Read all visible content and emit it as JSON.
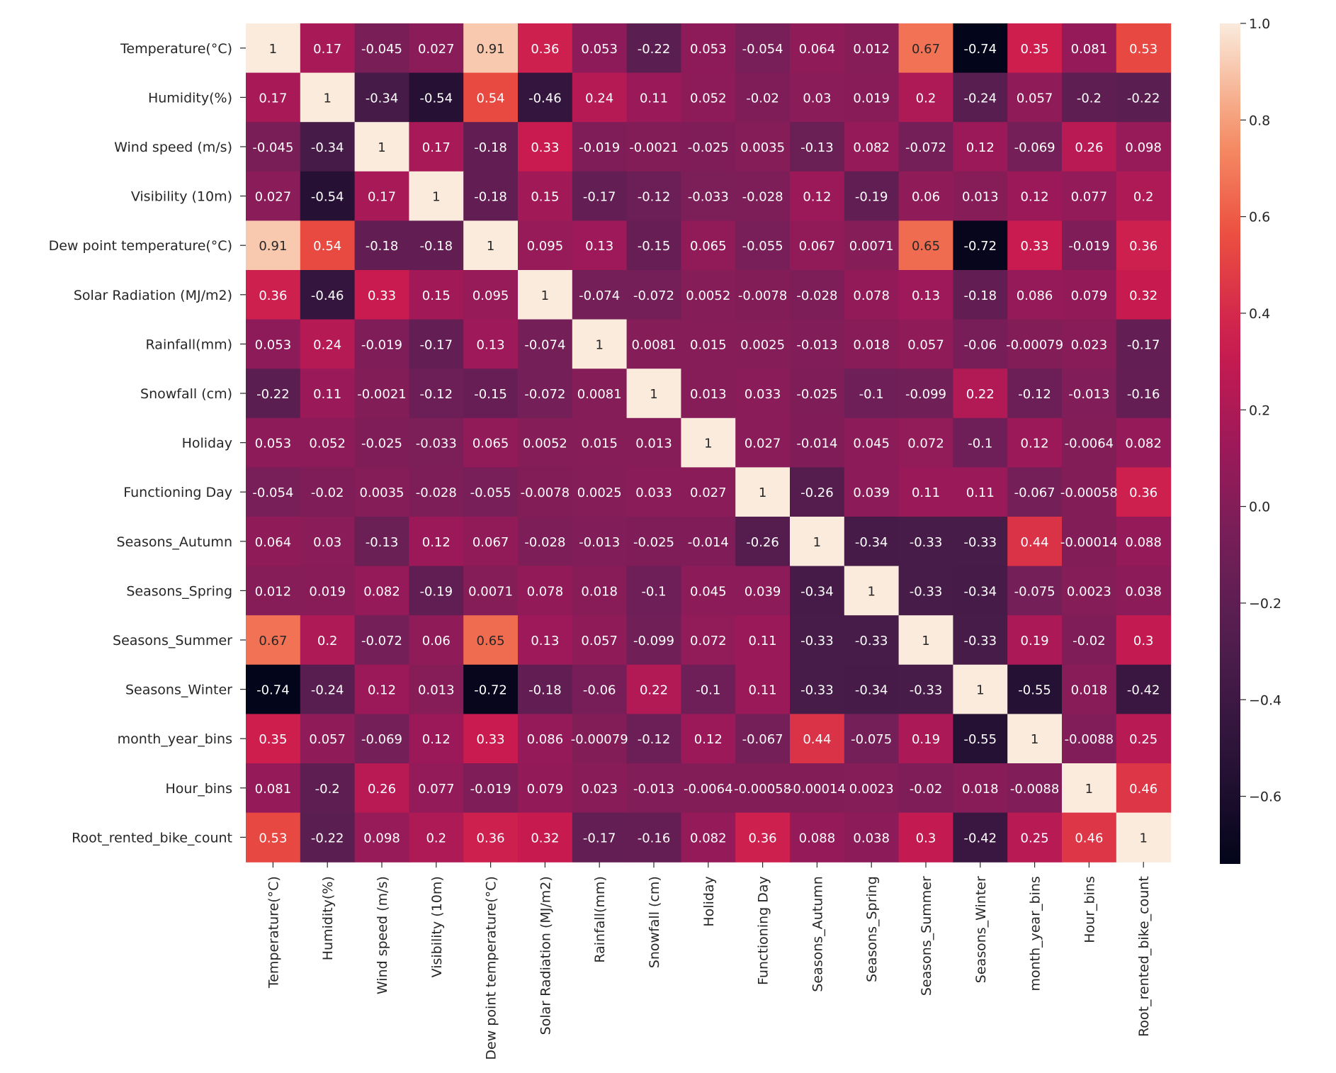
{
  "chart_data": {
    "type": "heatmap",
    "title": "",
    "labels": [
      "Temperature(°C)",
      "Humidity(%)",
      "Wind speed (m/s)",
      "Visibility (10m)",
      "Dew point temperature(°C)",
      "Solar Radiation (MJ/m2)",
      "Rainfall(mm)",
      "Snowfall (cm)",
      "Holiday",
      "Functioning Day",
      "Seasons_Autumn",
      "Seasons_Spring",
      "Seasons_Summer",
      "Seasons_Winter",
      "month_year_bins",
      "Hour_bins",
      "Root_rented_bike_count"
    ],
    "cell_text": [
      [
        "1",
        "0.17",
        "-0.045",
        "0.027",
        "0.91",
        "0.36",
        "0.053",
        "-0.22",
        "0.053",
        "-0.054",
        "0.064",
        "0.012",
        "0.67",
        "-0.74",
        "0.35",
        "0.081",
        "0.53"
      ],
      [
        "0.17",
        "1",
        "-0.34",
        "-0.54",
        "0.54",
        "-0.46",
        "0.24",
        "0.11",
        "0.052",
        "-0.02",
        "0.03",
        "0.019",
        "0.2",
        "-0.24",
        "0.057",
        "-0.2",
        "-0.22"
      ],
      [
        "-0.045",
        "-0.34",
        "1",
        "0.17",
        "-0.18",
        "0.33",
        "-0.019",
        "-0.0021",
        "-0.025",
        "0.0035",
        "-0.13",
        "0.082",
        "-0.072",
        "0.12",
        "-0.069",
        "0.26",
        "0.098"
      ],
      [
        "0.027",
        "-0.54",
        "0.17",
        "1",
        "-0.18",
        "0.15",
        "-0.17",
        "-0.12",
        "-0.033",
        "-0.028",
        "0.12",
        "-0.19",
        "0.06",
        "0.013",
        "0.12",
        "0.077",
        "0.2"
      ],
      [
        "0.91",
        "0.54",
        "-0.18",
        "-0.18",
        "1",
        "0.095",
        "0.13",
        "-0.15",
        "0.065",
        "-0.055",
        "0.067",
        "0.0071",
        "0.65",
        "-0.72",
        "0.33",
        "-0.019",
        "0.36"
      ],
      [
        "0.36",
        "-0.46",
        "0.33",
        "0.15",
        "0.095",
        "1",
        "-0.074",
        "-0.072",
        "0.0052",
        "-0.0078",
        "-0.028",
        "0.078",
        "0.13",
        "-0.18",
        "0.086",
        "0.079",
        "0.32"
      ],
      [
        "0.053",
        "0.24",
        "-0.019",
        "-0.17",
        "0.13",
        "-0.074",
        "1",
        "0.0081",
        "0.015",
        "0.0025",
        "-0.013",
        "0.018",
        "0.057",
        "-0.06",
        "-0.00079",
        "0.023",
        "-0.17"
      ],
      [
        "-0.22",
        "0.11",
        "-0.0021",
        "-0.12",
        "-0.15",
        "-0.072",
        "0.0081",
        "1",
        "0.013",
        "0.033",
        "-0.025",
        "-0.1",
        "-0.099",
        "0.22",
        "-0.12",
        "-0.013",
        "-0.16"
      ],
      [
        "0.053",
        "0.052",
        "-0.025",
        "-0.033",
        "0.065",
        "0.0052",
        "0.015",
        "0.013",
        "1",
        "0.027",
        "-0.014",
        "0.045",
        "0.072",
        "-0.1",
        "0.12",
        "-0.0064",
        "0.082"
      ],
      [
        "-0.054",
        "-0.02",
        "0.0035",
        "-0.028",
        "-0.055",
        "-0.0078",
        "0.0025",
        "0.033",
        "0.027",
        "1",
        "-0.26",
        "0.039",
        "0.11",
        "0.11",
        "-0.067",
        "-0.00058",
        "0.36"
      ],
      [
        "0.064",
        "0.03",
        "-0.13",
        "0.12",
        "0.067",
        "-0.028",
        "-0.013",
        "-0.025",
        "-0.014",
        "-0.26",
        "1",
        "-0.34",
        "-0.33",
        "-0.33",
        "0.44",
        "-0.00014",
        "0.088"
      ],
      [
        "0.012",
        "0.019",
        "0.082",
        "-0.19",
        "0.0071",
        "0.078",
        "0.018",
        "-0.1",
        "0.045",
        "0.039",
        "-0.34",
        "1",
        "-0.33",
        "-0.34",
        "-0.075",
        "0.0023",
        "0.038"
      ],
      [
        "0.67",
        "0.2",
        "-0.072",
        "0.06",
        "0.65",
        "0.13",
        "0.057",
        "-0.099",
        "0.072",
        "0.11",
        "-0.33",
        "-0.33",
        "1",
        "-0.33",
        "0.19",
        "-0.02",
        "0.3"
      ],
      [
        "-0.74",
        "-0.24",
        "0.12",
        "0.013",
        "-0.72",
        "-0.18",
        "-0.06",
        "0.22",
        "-0.1",
        "0.11",
        "-0.33",
        "-0.34",
        "-0.33",
        "1",
        "-0.55",
        "0.018",
        "-0.42"
      ],
      [
        "0.35",
        "0.057",
        "-0.069",
        "0.12",
        "0.33",
        "0.086",
        "-0.00079",
        "-0.12",
        "0.12",
        "-0.067",
        "0.44",
        "-0.075",
        "0.19",
        "-0.55",
        "1",
        "-0.0088",
        "0.25"
      ],
      [
        "0.081",
        "-0.2",
        "0.26",
        "0.077",
        "-0.019",
        "0.079",
        "0.023",
        "-0.013",
        "-0.0064",
        "-0.00058",
        "-0.00014",
        "0.0023",
        "-0.02",
        "0.018",
        "-0.0088",
        "1",
        "0.46"
      ],
      [
        "0.53",
        "-0.22",
        "0.098",
        "0.2",
        "0.36",
        "0.32",
        "-0.17",
        "-0.16",
        "0.082",
        "0.36",
        "0.088",
        "0.038",
        "0.3",
        "-0.42",
        "0.25",
        "0.46",
        "1"
      ]
    ],
    "colorbar": {
      "min": -0.74,
      "max": 1.0,
      "ticks": [
        1.0,
        0.8,
        0.6,
        0.4,
        0.2,
        0.0,
        -0.2,
        -0.4,
        -0.6
      ],
      "tick_labels": [
        "1.0",
        "0.8",
        "0.6",
        "0.4",
        "0.2",
        "0.0",
        "−0.2",
        "−0.4",
        "−0.6"
      ]
    },
    "colormap": "rocket",
    "grid": false,
    "legend": "colorbar-right"
  }
}
